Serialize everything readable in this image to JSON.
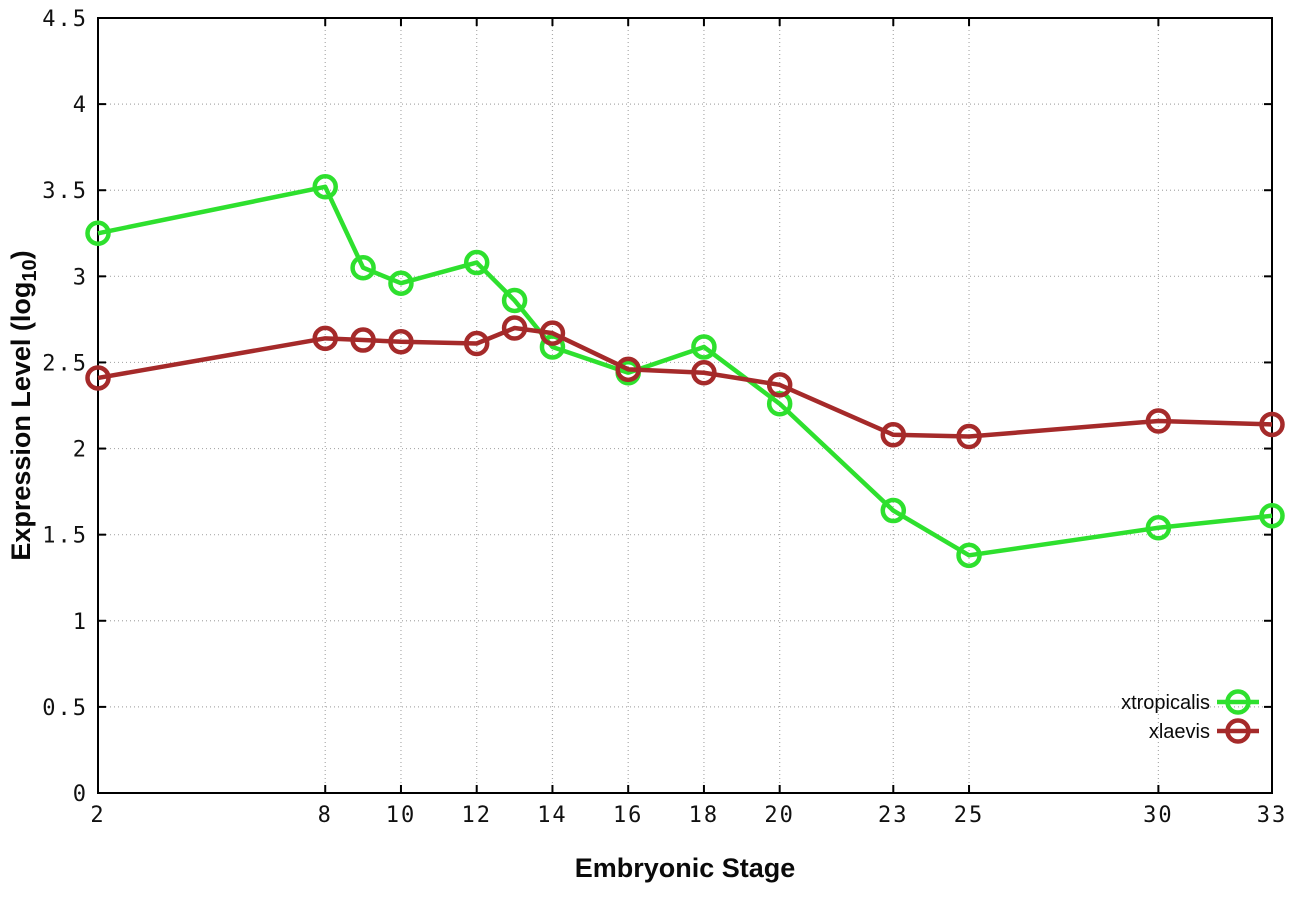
{
  "figure": {
    "background_color": "#ffffff",
    "border_color": "#000000",
    "grid_color": "#ababab",
    "tick_text_color": "#111111"
  },
  "chart_data": {
    "type": "line",
    "title": "",
    "xlabel": "Embryonic Stage",
    "ylabel": "Expression Level (log10)",
    "ylabel_rich": {
      "pre": "Expression Level (log",
      "sub": "10",
      "post": ")"
    },
    "xlim": [
      2,
      33
    ],
    "ylim": [
      0,
      4.5
    ],
    "grid": true,
    "legend_position": "bottom-right",
    "marker": "open-circle",
    "x": [
      2,
      8,
      9,
      10,
      12,
      13,
      14,
      16,
      18,
      20,
      23,
      25,
      30,
      33
    ],
    "series": [
      {
        "name": "xtropicalis",
        "color": "#2ee02e",
        "values": [
          3.25,
          3.52,
          3.05,
          2.96,
          3.08,
          2.86,
          2.59,
          2.44,
          2.59,
          2.26,
          1.64,
          1.38,
          1.54,
          1.61
        ]
      },
      {
        "name": "xlaevis",
        "color": "#a52a2a",
        "values": [
          2.41,
          2.64,
          2.63,
          2.62,
          2.61,
          2.7,
          2.67,
          2.46,
          2.44,
          2.37,
          2.08,
          2.07,
          2.16,
          2.14
        ]
      }
    ],
    "x_ticks": {
      "values": [
        2,
        8,
        10,
        12,
        14,
        16,
        18,
        20,
        23,
        25,
        30,
        33
      ],
      "labels": [
        "2",
        "8",
        "10",
        "12",
        "14",
        "16",
        "18",
        "20",
        "23",
        "25",
        "30",
        "33"
      ]
    },
    "y_ticks": {
      "values": [
        0,
        0.5,
        1,
        1.5,
        2,
        2.5,
        3,
        3.5,
        4,
        4.5
      ],
      "labels": [
        "0",
        "0.5",
        "1",
        "1.5",
        "2",
        "2.5",
        "3",
        "3.5",
        "4",
        "4.5"
      ]
    }
  }
}
